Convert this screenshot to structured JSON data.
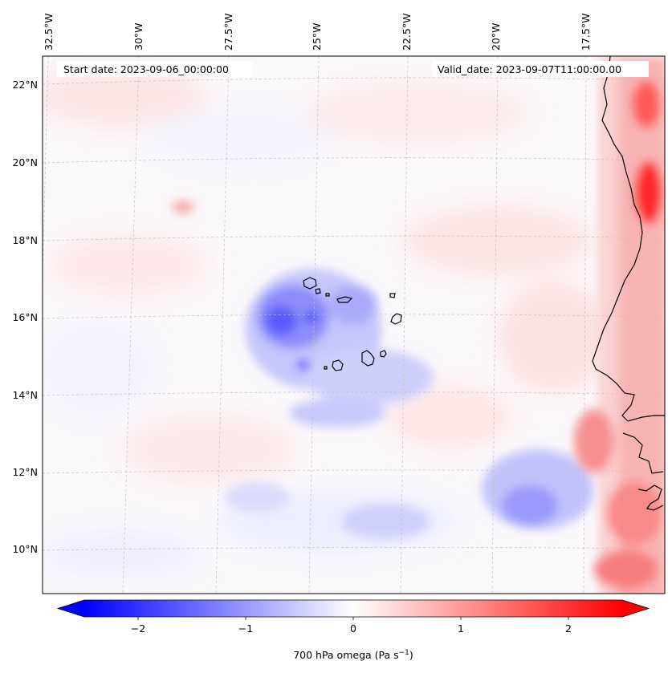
{
  "map": {
    "start_date_text": "Start date: 2023-09-06_00:00:00",
    "valid_date_text": "Valid_date: 2023-09-07T11:00:00.00",
    "longitude_labels": [
      "32.5°W",
      "30°W",
      "27.5°W",
      "25°W",
      "22.5°W",
      "20°W",
      "17.5°W"
    ],
    "latitude_labels": [
      "22°N",
      "20°N",
      "18°N",
      "16°N",
      "14°N",
      "12°N",
      "10°N"
    ],
    "field": "700 hPa omega",
    "features": [
      "Cape Verde islands",
      "West African coastline"
    ]
  },
  "colorbar": {
    "label_main": "700 hPa omega (Pa s",
    "label_unit_sup": "−1",
    "label_close": ")",
    "tick_labels": [
      "−2",
      "−1",
      "0",
      "1",
      "2"
    ],
    "tick_values": [
      -2,
      -1,
      0,
      1,
      2
    ],
    "range": [
      -2.5,
      2.5
    ],
    "colors": {
      "low": "#0000ff",
      "mid": "#ffffff",
      "high": "#ff0000"
    }
  }
}
